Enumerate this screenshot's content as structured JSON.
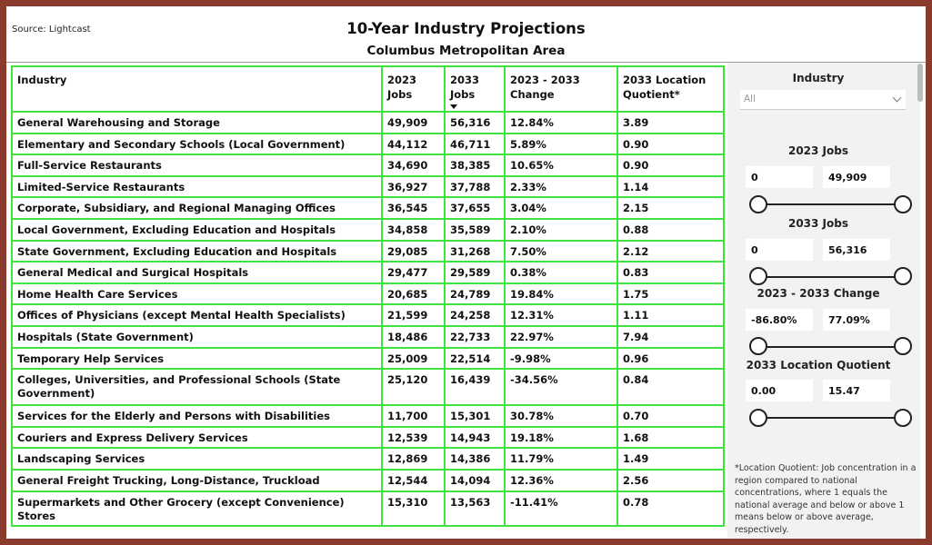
{
  "header": {
    "source": "Source: Lightcast",
    "title": "10-Year Industry Projections",
    "subtitle": "Columbus Metropolitan Area"
  },
  "table": {
    "columns": [
      "Industry",
      "2023 Jobs",
      "2033 Jobs",
      "2023 - 2033 Change",
      "2033 Location Quotient*"
    ],
    "rows": [
      [
        "General Warehousing and Storage",
        "49,909",
        "56,316",
        "12.84%",
        "3.89"
      ],
      [
        "Elementary and Secondary Schools (Local Government)",
        "44,112",
        "46,711",
        "5.89%",
        "0.90"
      ],
      [
        "Full-Service Restaurants",
        "34,690",
        "38,385",
        "10.65%",
        "0.90"
      ],
      [
        "Limited-Service Restaurants",
        "36,927",
        "37,788",
        "2.33%",
        "1.14"
      ],
      [
        "Corporate, Subsidiary, and Regional Managing Offices",
        "36,545",
        "37,655",
        "3.04%",
        "2.15"
      ],
      [
        "Local Government, Excluding Education and Hospitals",
        "34,858",
        "35,589",
        "2.10%",
        "0.88"
      ],
      [
        "State Government, Excluding Education and Hospitals",
        "29,085",
        "31,268",
        "7.50%",
        "2.12"
      ],
      [
        "General Medical and Surgical Hospitals",
        "29,477",
        "29,589",
        "0.38%",
        "0.83"
      ],
      [
        "Home Health Care Services",
        "20,685",
        "24,789",
        "19.84%",
        "1.75"
      ],
      [
        "Offices of Physicians (except Mental Health Specialists)",
        "21,599",
        "24,258",
        "12.31%",
        "1.11"
      ],
      [
        "Hospitals (State Government)",
        "18,486",
        "22,733",
        "22.97%",
        "7.94"
      ],
      [
        "Temporary Help Services",
        "25,009",
        "22,514",
        "-9.98%",
        "0.96"
      ],
      [
        "Colleges, Universities, and Professional Schools (State Government)",
        "25,120",
        "16,439",
        "-34.56%",
        "0.84"
      ],
      [
        "Services for the Elderly and Persons with Disabilities",
        "11,700",
        "15,301",
        "30.78%",
        "0.70"
      ],
      [
        "Couriers and Express Delivery Services",
        "12,539",
        "14,943",
        "19.18%",
        "1.68"
      ],
      [
        "Landscaping Services",
        "12,869",
        "14,386",
        "11.79%",
        "1.49"
      ],
      [
        "General Freight Trucking, Long-Distance, Truckload",
        "12,544",
        "14,094",
        "12.36%",
        "2.56"
      ],
      [
        "Supermarkets and Other Grocery (except Convenience) Stores",
        "15,310",
        "13,563",
        "-11.41%",
        "0.78"
      ]
    ]
  },
  "filters": {
    "industry_label": "Industry",
    "industry_value": "All",
    "jobs2023": {
      "label": "2023 Jobs",
      "min": "0",
      "max": "49,909"
    },
    "jobs2033": {
      "label": "2033 Jobs",
      "min": "0",
      "max": "56,316"
    },
    "change": {
      "label": "2023 - 2033 Change",
      "min": "-86.80%",
      "max": "77.09%"
    },
    "lq": {
      "label": "2033 Location Quotient",
      "min": "0.00",
      "max": "15.47"
    }
  },
  "footnote": "*Location Quotient: Job concentration in a region compared to national concentrations, where 1 equals the national average and below or above 1 means below or above average, respectively.",
  "colors": {
    "border": "#3ee33e",
    "frame": "#8b3a2e"
  }
}
